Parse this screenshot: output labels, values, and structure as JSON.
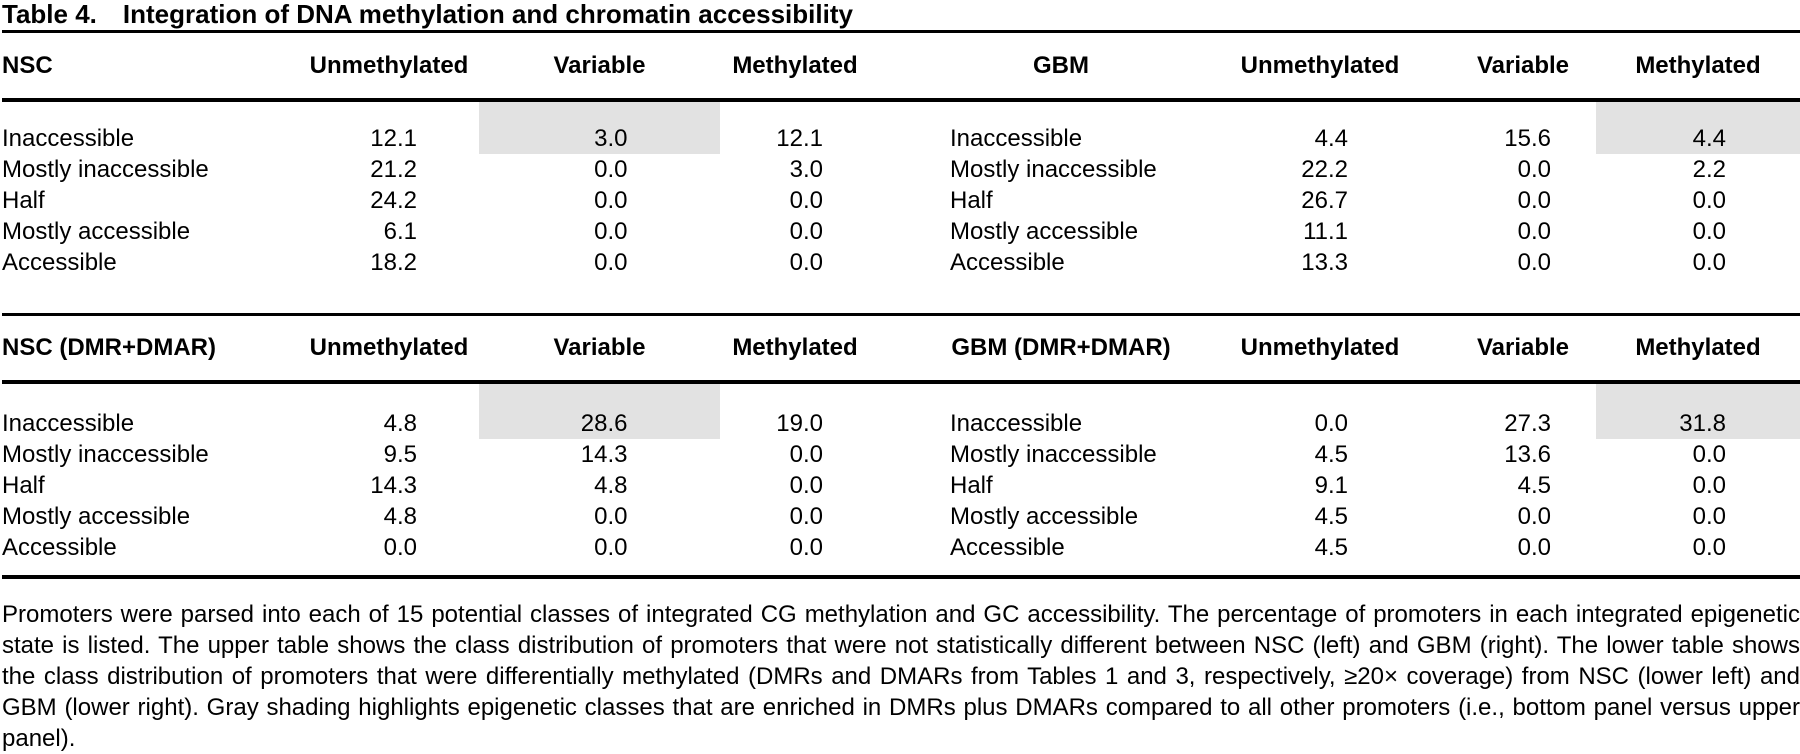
{
  "title": {
    "label": "Table 4.",
    "text": "Integration of DNA methylation and chromatin accessibility"
  },
  "columns": [
    "Unmethylated",
    "Variable",
    "Methylated"
  ],
  "row_labels": [
    "Inaccessible",
    "Mostly inaccessible",
    "Half",
    "Mostly accessible",
    "Accessible"
  ],
  "tables": [
    {
      "id": "nsc",
      "name": "NSC",
      "panel": "upper",
      "side": "left",
      "shaded_column": 1,
      "shaded_row": 0,
      "rows": [
        [
          "12.1",
          "3.0",
          "12.1"
        ],
        [
          "21.2",
          "0.0",
          "3.0"
        ],
        [
          "24.2",
          "0.0",
          "0.0"
        ],
        [
          "6.1",
          "0.0",
          "0.0"
        ],
        [
          "18.2",
          "0.0",
          "0.0"
        ]
      ]
    },
    {
      "id": "gbm",
      "name": "GBM",
      "panel": "upper",
      "side": "right",
      "shaded_column": 2,
      "shaded_row": 0,
      "rows": [
        [
          "4.4",
          "15.6",
          "4.4"
        ],
        [
          "22.2",
          "0.0",
          "2.2"
        ],
        [
          "26.7",
          "0.0",
          "0.0"
        ],
        [
          "11.1",
          "0.0",
          "0.0"
        ],
        [
          "13.3",
          "0.0",
          "0.0"
        ]
      ]
    },
    {
      "id": "nsc_dmr",
      "name": "NSC (DMR+DMAR)",
      "panel": "lower",
      "side": "left",
      "shaded_column": 1,
      "shaded_row": 0,
      "rows": [
        [
          "4.8",
          "28.6",
          "19.0"
        ],
        [
          "9.5",
          "14.3",
          "0.0"
        ],
        [
          "14.3",
          "4.8",
          "0.0"
        ],
        [
          "4.8",
          "0.0",
          "0.0"
        ],
        [
          "0.0",
          "0.0",
          "0.0"
        ]
      ]
    },
    {
      "id": "gbm_dmr",
      "name": "GBM (DMR+DMAR)",
      "panel": "lower",
      "side": "right",
      "shaded_column": 2,
      "shaded_row": 0,
      "rows": [
        [
          "0.0",
          "27.3",
          "31.8"
        ],
        [
          "4.5",
          "13.6",
          "0.0"
        ],
        [
          "9.1",
          "4.5",
          "0.0"
        ],
        [
          "4.5",
          "0.0",
          "0.0"
        ],
        [
          "4.5",
          "0.0",
          "0.0"
        ]
      ]
    }
  ],
  "footnote": "Promoters were parsed into each of 15 potential classes of integrated CG methylation and GC accessibility. The percentage of promoters in each integrated epigenetic state is listed. The upper table shows the class distribution of promoters that were not statistically different between NSC (left) and GBM (right). The lower table shows the class distribution of promoters that were differentially methylated (DMRs and DMARs from Tables 1 and 3, respectively, ≥20× coverage) from NSC (lower left) and GBM (lower right). Gray shading highlights epigenetic classes that are enriched in DMRs plus DMARs compared to all other promoters (i.e., bottom panel versus upper panel).",
  "colors": {
    "shading": "#e2e2e2",
    "text": "#000000",
    "rule": "#000000",
    "background": "#ffffff"
  }
}
